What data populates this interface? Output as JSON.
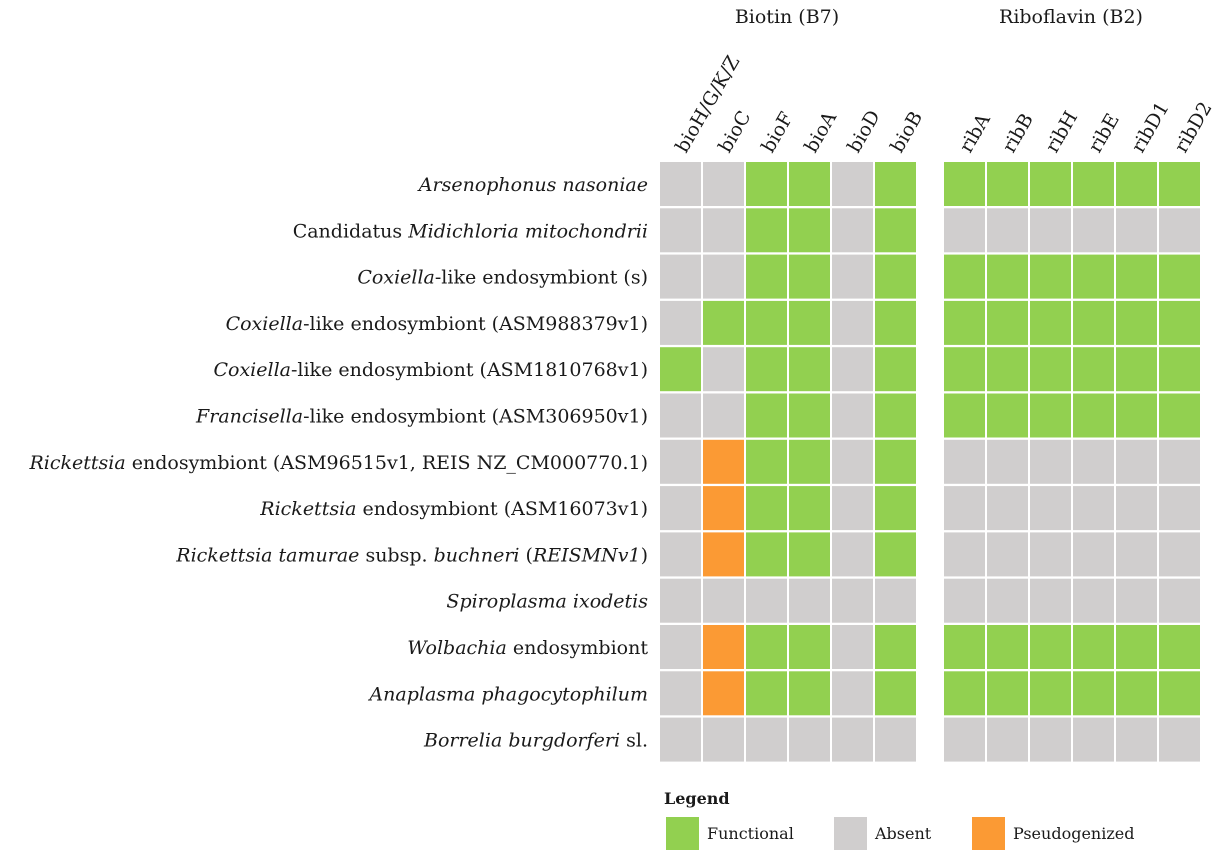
{
  "chart_data": {
    "type": "heatmap",
    "groups": [
      {
        "title": "Biotin (B7)",
        "columns": [
          "bioH/G/K/Z",
          "bioC",
          "bioF",
          "bioA",
          "bioD",
          "bioB"
        ]
      },
      {
        "title": "Riboflavin (B2)",
        "columns": [
          "ribA",
          "ribB",
          "ribH",
          "ribE",
          "ribD1",
          "ribD2"
        ]
      }
    ],
    "rows": [
      {
        "parts": [
          {
            "t": "Arsenophonus nasoniae",
            "i": true
          }
        ],
        "values": [
          "A",
          "A",
          "F",
          "F",
          "A",
          "F",
          "F",
          "F",
          "F",
          "F",
          "F",
          "F"
        ]
      },
      {
        "parts": [
          {
            "t": "Candidatus ",
            "i": false
          },
          {
            "t": "Midichloria mitochondrii",
            "i": true
          }
        ],
        "values": [
          "A",
          "A",
          "F",
          "F",
          "A",
          "F",
          "A",
          "A",
          "A",
          "A",
          "A",
          "A"
        ]
      },
      {
        "parts": [
          {
            "t": "Coxiella",
            "i": true
          },
          {
            "t": "-like endosymbiont (s)",
            "i": false
          }
        ],
        "values": [
          "A",
          "A",
          "F",
          "F",
          "A",
          "F",
          "F",
          "F",
          "F",
          "F",
          "F",
          "F"
        ]
      },
      {
        "parts": [
          {
            "t": "Coxiella",
            "i": true
          },
          {
            "t": "-like endosymbiont (ASM988379v1)",
            "i": false
          }
        ],
        "values": [
          "A",
          "F",
          "F",
          "F",
          "A",
          "F",
          "F",
          "F",
          "F",
          "F",
          "F",
          "F"
        ]
      },
      {
        "parts": [
          {
            "t": "Coxiella",
            "i": true
          },
          {
            "t": "-like endosymbiont (ASM1810768v1)",
            "i": false
          }
        ],
        "values": [
          "F",
          "A",
          "F",
          "F",
          "A",
          "F",
          "F",
          "F",
          "F",
          "F",
          "F",
          "F"
        ]
      },
      {
        "parts": [
          {
            "t": "Francisella",
            "i": true
          },
          {
            "t": "-like endosymbiont (ASM306950v1)",
            "i": false
          }
        ],
        "values": [
          "A",
          "A",
          "F",
          "F",
          "A",
          "F",
          "F",
          "F",
          "F",
          "F",
          "F",
          "F"
        ]
      },
      {
        "parts": [
          {
            "t": "Rickettsia",
            "i": true
          },
          {
            "t": " endosymbiont (ASM96515v1, REIS NZ_CM000770.1)",
            "i": false
          }
        ],
        "values": [
          "A",
          "P",
          "F",
          "F",
          "A",
          "F",
          "A",
          "A",
          "A",
          "A",
          "A",
          "A"
        ]
      },
      {
        "parts": [
          {
            "t": "Rickettsia",
            "i": true
          },
          {
            "t": " endosymbiont (ASM16073v1)",
            "i": false
          }
        ],
        "values": [
          "A",
          "P",
          "F",
          "F",
          "A",
          "F",
          "A",
          "A",
          "A",
          "A",
          "A",
          "A"
        ]
      },
      {
        "parts": [
          {
            "t": "Rickettsia tamurae",
            "i": true
          },
          {
            "t": " subsp. ",
            "i": false
          },
          {
            "t": "buchneri",
            "i": true
          },
          {
            "t": " (",
            "i": false
          },
          {
            "t": "REISMNv1",
            "i": true
          },
          {
            "t": ")",
            "i": false
          }
        ],
        "values": [
          "A",
          "P",
          "F",
          "F",
          "A",
          "F",
          "A",
          "A",
          "A",
          "A",
          "A",
          "A"
        ]
      },
      {
        "parts": [
          {
            "t": "Spiroplasma ixodetis",
            "i": true
          }
        ],
        "values": [
          "A",
          "A",
          "A",
          "A",
          "A",
          "A",
          "A",
          "A",
          "A",
          "A",
          "A",
          "A"
        ]
      },
      {
        "parts": [
          {
            "t": "Wolbachia",
            "i": true
          },
          {
            "t": " endosymbiont",
            "i": false
          }
        ],
        "values": [
          "A",
          "P",
          "F",
          "F",
          "A",
          "F",
          "F",
          "F",
          "F",
          "F",
          "F",
          "F"
        ]
      },
      {
        "parts": [
          {
            "t": "Anaplasma phagocytophilum",
            "i": true
          }
        ],
        "values": [
          "A",
          "P",
          "F",
          "F",
          "A",
          "F",
          "F",
          "F",
          "F",
          "F",
          "F",
          "F"
        ]
      },
      {
        "parts": [
          {
            "t": "Borrelia burgdorferi",
            "i": true
          },
          {
            "t": " sl.",
            "i": false
          }
        ],
        "values": [
          "A",
          "A",
          "A",
          "A",
          "A",
          "A",
          "A",
          "A",
          "A",
          "A",
          "A",
          "A"
        ]
      }
    ],
    "legend": {
      "title": "Legend",
      "items": [
        {
          "code": "F",
          "label": "Functional",
          "color": "#92d050"
        },
        {
          "code": "A",
          "label": "Absent",
          "color": "#d0cece"
        },
        {
          "code": "P",
          "label": "Pseudogenized",
          "color": "#fb9a34"
        }
      ]
    }
  }
}
